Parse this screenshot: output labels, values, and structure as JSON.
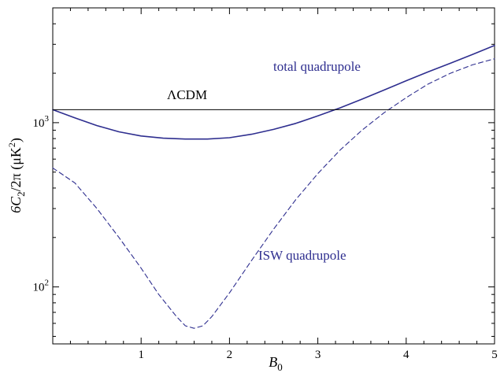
{
  "chart_data": {
    "type": "line",
    "title": "",
    "xlabel": "B",
    "xlabel_sub": "0",
    "ylabel": "6C",
    "ylabel_sub": "2",
    "ylabel_rest": "/2π (μK",
    "ylabel_sup": "2",
    "ylabel_end": ")",
    "xlim": [
      0,
      5
    ],
    "ylim": [
      45,
      5000
    ],
    "yscale": "log",
    "grid": false,
    "x_ticks": [
      1,
      2,
      3,
      4,
      5
    ],
    "y_ticks": [
      {
        "value": 100,
        "base": "10",
        "exp": "2"
      },
      {
        "value": 1000,
        "base": "10",
        "exp": "3"
      }
    ],
    "series": [
      {
        "name": "total quadrupole",
        "color": "#2e2e8f",
        "style": "solid",
        "x": [
          0.0,
          0.25,
          0.5,
          0.75,
          1.0,
          1.25,
          1.5,
          1.75,
          2.0,
          2.25,
          2.5,
          2.75,
          3.0,
          3.25,
          3.5,
          3.75,
          4.0,
          4.25,
          4.5,
          4.75,
          5.0
        ],
        "y": [
          1200,
          1070,
          960,
          880,
          830,
          805,
          795,
          795,
          810,
          850,
          910,
          990,
          1100,
          1230,
          1390,
          1580,
          1800,
          2040,
          2300,
          2600,
          2950
        ]
      },
      {
        "name": "ISW quadrupole",
        "color": "#2e2e8f",
        "style": "dashed",
        "x": [
          0.0,
          0.25,
          0.5,
          0.75,
          1.0,
          1.2,
          1.4,
          1.5,
          1.6,
          1.7,
          1.8,
          2.0,
          2.25,
          2.5,
          2.75,
          3.0,
          3.25,
          3.5,
          3.75,
          4.0,
          4.25,
          4.5,
          4.75,
          5.0
        ],
        "y": [
          530,
          430,
          300,
          200,
          130,
          90,
          66,
          58,
          56,
          58,
          66,
          92,
          145,
          225,
          340,
          490,
          680,
          900,
          1150,
          1420,
          1720,
          2000,
          2250,
          2450
        ]
      },
      {
        "name": "ΛCDM",
        "color": "#000000",
        "style": "solid",
        "x": [
          0,
          5
        ],
        "y": [
          1200,
          1200
        ]
      }
    ],
    "annotations": [
      {
        "text": "total quadrupole",
        "color": "#2e2e8f"
      },
      {
        "text": "ΛCDM",
        "color": "#000000"
      },
      {
        "text": "ISW quadrupole",
        "color": "#2e2e8f"
      }
    ]
  }
}
